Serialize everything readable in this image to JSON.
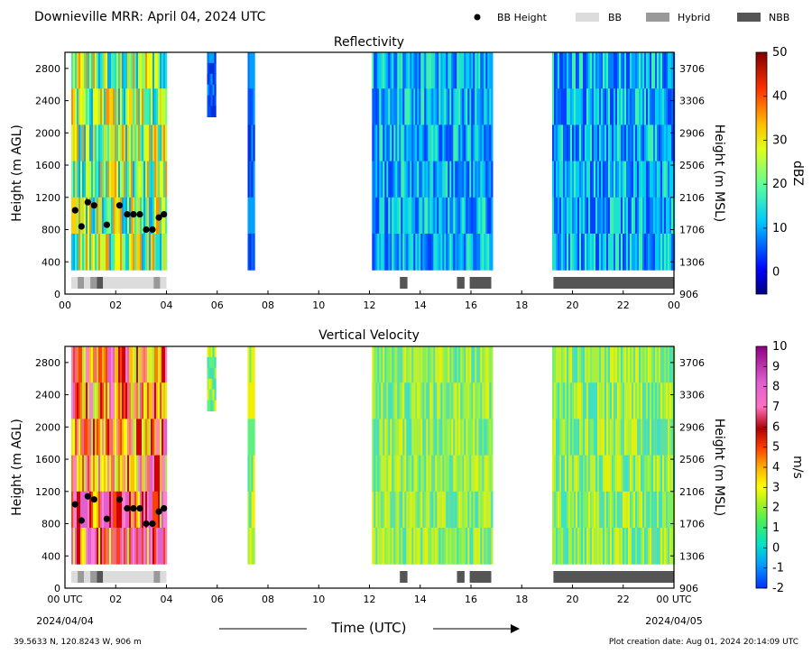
{
  "header": {
    "title": "Downieville MRR:  April 04, 2024 UTC",
    "legend": [
      {
        "label": "BB Height",
        "kind": "dot",
        "color": "#000000"
      },
      {
        "label": "BB",
        "kind": "swatch",
        "color": "#dcdcdc"
      },
      {
        "label": "Hybrid",
        "kind": "swatch",
        "color": "#999999"
      },
      {
        "label": "NBB",
        "kind": "swatch",
        "color": "#555555"
      }
    ]
  },
  "footer": {
    "location": "39.5633 N, 120.8243 W, 906 m",
    "creation": "Plot creation date: Aug 01, 2024 20:14:09 UTC",
    "xlabel": "Time (UTC)",
    "start_date": "2024/04/04",
    "end_date": "2024/04/05"
  },
  "chart_data": [
    {
      "type": "heatmap",
      "title": "Reflectivity",
      "ylabel_left": "Height (m AGL)",
      "ylabel_right": "Height (m MSL)",
      "colorbar_label": "dBZ",
      "colorbar_range": [
        -5,
        50
      ],
      "colorbar_ticks": [
        "0",
        "10",
        "20",
        "30",
        "40",
        "50"
      ],
      "x_ticks": [
        "00",
        "02",
        "04",
        "06",
        "08",
        "10",
        "12",
        "14",
        "16",
        "18",
        "20",
        "22",
        "00"
      ],
      "xlim_hours": [
        0,
        24
      ],
      "ylim": [
        0,
        3000
      ],
      "y_ticks_left": [
        "0",
        "400",
        "800",
        "1200",
        "1600",
        "2000",
        "2400",
        "2800"
      ],
      "y_ticks_right": [
        "906",
        "1306",
        "1706",
        "2106",
        "2506",
        "2906",
        "3306",
        "3706"
      ],
      "echo_segments": [
        {
          "start": 0.25,
          "end": 4.0,
          "top": 3000,
          "bottom": 300,
          "level": "mixed"
        },
        {
          "start": 5.6,
          "end": 5.95,
          "top": 3000,
          "bottom": 2200,
          "level": "weak"
        },
        {
          "start": 7.2,
          "end": 7.45,
          "top": 3000,
          "bottom": 300,
          "level": "weak"
        },
        {
          "start": 12.1,
          "end": 16.8,
          "top": 3000,
          "bottom": 300,
          "level": "moderate"
        },
        {
          "start": 19.2,
          "end": 24.0,
          "top": 3000,
          "bottom": 300,
          "level": "moderate"
        }
      ],
      "bb_height_points": [
        {
          "hour": 0.4,
          "height": 1040
        },
        {
          "hour": 0.65,
          "height": 840
        },
        {
          "hour": 0.9,
          "height": 1140
        },
        {
          "hour": 1.15,
          "height": 1100
        },
        {
          "hour": 1.65,
          "height": 860
        },
        {
          "hour": 2.15,
          "height": 1100
        },
        {
          "hour": 2.45,
          "height": 990
        },
        {
          "hour": 2.7,
          "height": 990
        },
        {
          "hour": 2.95,
          "height": 990
        },
        {
          "hour": 3.2,
          "height": 800
        },
        {
          "hour": 3.45,
          "height": 800
        },
        {
          "hour": 3.7,
          "height": 950
        },
        {
          "hour": 3.9,
          "height": 990
        }
      ],
      "bb_type_bars": [
        {
          "start": 0.25,
          "end": 0.5,
          "type": "BB"
        },
        {
          "start": 0.5,
          "end": 0.75,
          "type": "Hybrid"
        },
        {
          "start": 0.75,
          "end": 1.0,
          "type": "BB"
        },
        {
          "start": 1.0,
          "end": 1.25,
          "type": "Hybrid"
        },
        {
          "start": 1.25,
          "end": 1.5,
          "type": "NBB"
        },
        {
          "start": 1.5,
          "end": 3.5,
          "type": "BB"
        },
        {
          "start": 3.5,
          "end": 3.75,
          "type": "Hybrid"
        },
        {
          "start": 3.75,
          "end": 4.0,
          "type": "BB"
        },
        {
          "start": 13.2,
          "end": 13.5,
          "type": "NBB"
        },
        {
          "start": 15.45,
          "end": 15.75,
          "type": "NBB"
        },
        {
          "start": 15.95,
          "end": 16.8,
          "type": "NBB"
        },
        {
          "start": 19.25,
          "end": 24.0,
          "type": "NBB"
        }
      ]
    },
    {
      "type": "heatmap",
      "title": "Vertical Velocity",
      "ylabel_left": "Height (m AGL)",
      "ylabel_right": "Height (m MSL)",
      "colorbar_label": "m/s",
      "colorbar_range": [
        -2,
        10
      ],
      "colorbar_ticks": [
        "-2",
        "-1",
        "0",
        "1",
        "2",
        "3",
        "4",
        "5",
        "6",
        "7",
        "8",
        "9",
        "10"
      ],
      "x_ticks": [
        "00 UTC",
        "02",
        "04",
        "06",
        "08",
        "10",
        "12",
        "14",
        "16",
        "18",
        "20",
        "22",
        "00 UTC"
      ],
      "xlim_hours": [
        0,
        24
      ],
      "ylim": [
        0,
        3000
      ],
      "y_ticks_left": [
        "0",
        "400",
        "800",
        "1200",
        "1600",
        "2000",
        "2400",
        "2800"
      ],
      "y_ticks_right": [
        "906",
        "1306",
        "1706",
        "2106",
        "2506",
        "2906",
        "3306",
        "3706"
      ],
      "echo_segments": [
        {
          "start": 0.25,
          "end": 4.0,
          "top": 3000,
          "bottom": 300,
          "level": "mixed"
        },
        {
          "start": 5.6,
          "end": 5.95,
          "top": 3000,
          "bottom": 2200,
          "level": "weak"
        },
        {
          "start": 7.2,
          "end": 7.45,
          "top": 3000,
          "bottom": 300,
          "level": "weak"
        },
        {
          "start": 12.1,
          "end": 16.8,
          "top": 3000,
          "bottom": 300,
          "level": "moderate"
        },
        {
          "start": 19.2,
          "end": 24.0,
          "top": 3000,
          "bottom": 300,
          "level": "moderate"
        }
      ],
      "bb_height_points": [
        {
          "hour": 0.4,
          "height": 1040
        },
        {
          "hour": 0.65,
          "height": 840
        },
        {
          "hour": 0.9,
          "height": 1140
        },
        {
          "hour": 1.15,
          "height": 1100
        },
        {
          "hour": 1.65,
          "height": 860
        },
        {
          "hour": 2.15,
          "height": 1100
        },
        {
          "hour": 2.45,
          "height": 990
        },
        {
          "hour": 2.7,
          "height": 990
        },
        {
          "hour": 2.95,
          "height": 990
        },
        {
          "hour": 3.2,
          "height": 800
        },
        {
          "hour": 3.45,
          "height": 800
        },
        {
          "hour": 3.7,
          "height": 950
        },
        {
          "hour": 3.9,
          "height": 990
        }
      ],
      "bb_type_bars": [
        {
          "start": 0.25,
          "end": 0.5,
          "type": "BB"
        },
        {
          "start": 0.5,
          "end": 0.75,
          "type": "Hybrid"
        },
        {
          "start": 0.75,
          "end": 1.0,
          "type": "BB"
        },
        {
          "start": 1.0,
          "end": 1.25,
          "type": "Hybrid"
        },
        {
          "start": 1.25,
          "end": 1.5,
          "type": "NBB"
        },
        {
          "start": 1.5,
          "end": 3.5,
          "type": "BB"
        },
        {
          "start": 3.5,
          "end": 3.75,
          "type": "Hybrid"
        },
        {
          "start": 3.75,
          "end": 4.0,
          "type": "BB"
        },
        {
          "start": 13.2,
          "end": 13.5,
          "type": "NBB"
        },
        {
          "start": 15.45,
          "end": 15.75,
          "type": "NBB"
        },
        {
          "start": 15.95,
          "end": 16.8,
          "type": "NBB"
        },
        {
          "start": 19.25,
          "end": 24.0,
          "type": "NBB"
        }
      ]
    }
  ]
}
